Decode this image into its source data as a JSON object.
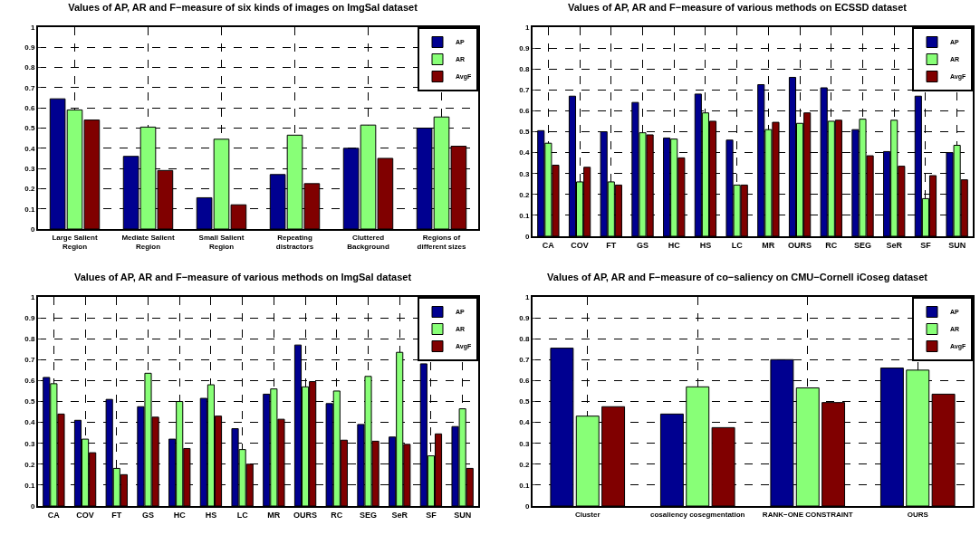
{
  "chart_data": [
    {
      "type": "bar",
      "title": "Values of AP, AR and F−measure of six kinds of images on ImgSal dataset",
      "categories": [
        "Large Salient Region",
        "Mediate Salient Region",
        "Small Salient Region",
        "Repeating distractors",
        "Cluttered Background",
        "Regions of different sizes"
      ],
      "series": [
        {
          "name": "AP",
          "color": "#000090",
          "values": [
            0.645,
            0.36,
            0.155,
            0.27,
            0.4,
            0.5
          ]
        },
        {
          "name": "AR",
          "color": "#88ff77",
          "values": [
            0.59,
            0.505,
            0.445,
            0.465,
            0.515,
            0.555
          ]
        },
        {
          "name": "AvgF",
          "color": "#800000",
          "values": [
            0.54,
            0.29,
            0.12,
            0.225,
            0.35,
            0.41
          ]
        }
      ],
      "ylim": [
        0,
        1
      ],
      "yticks": [
        0,
        0.1,
        0.2,
        0.3,
        0.4,
        0.5,
        0.6,
        0.7,
        0.8,
        0.9,
        1
      ],
      "grid": true,
      "legend": "top right"
    },
    {
      "type": "bar",
      "title": "Values of AP, AR and F−measure of various methods on ECSSD dataset",
      "categories": [
        "CA",
        "COV",
        "FT",
        "GS",
        "HC",
        "HS",
        "LC",
        "MR",
        "OURS",
        "RC",
        "SEG",
        "SeR",
        "SF",
        "SUN"
      ],
      "series": [
        {
          "name": "AP",
          "color": "#000090",
          "values": [
            0.505,
            0.67,
            0.5,
            0.64,
            0.47,
            0.68,
            0.46,
            0.725,
            0.76,
            0.71,
            0.51,
            0.405,
            0.67,
            0.4
          ]
        },
        {
          "name": "AR",
          "color": "#88ff77",
          "values": [
            0.445,
            0.26,
            0.26,
            0.495,
            0.465,
            0.59,
            0.245,
            0.51,
            0.54,
            0.55,
            0.56,
            0.555,
            0.18,
            0.435
          ]
        },
        {
          "name": "AvgF",
          "color": "#800000",
          "values": [
            0.34,
            0.33,
            0.245,
            0.485,
            0.375,
            0.55,
            0.245,
            0.545,
            0.59,
            0.555,
            0.385,
            0.335,
            0.29,
            0.27
          ]
        }
      ],
      "ylim": [
        0,
        1
      ],
      "yticks": [
        0,
        0.1,
        0.2,
        0.3,
        0.4,
        0.5,
        0.6,
        0.7,
        0.8,
        0.9,
        1
      ],
      "grid": true,
      "legend": "top right"
    },
    {
      "type": "bar",
      "title": "Values of AP, AR and F−measure of various methods on ImgSal dataset",
      "categories": [
        "CA",
        "COV",
        "FT",
        "GS",
        "HC",
        "HS",
        "LC",
        "MR",
        "OURS",
        "RC",
        "SEG",
        "SeR",
        "SF",
        "SUN"
      ],
      "series": [
        {
          "name": "AP",
          "color": "#000090",
          "values": [
            0.615,
            0.41,
            0.51,
            0.475,
            0.32,
            0.515,
            0.37,
            0.535,
            0.77,
            0.49,
            0.39,
            0.33,
            0.68,
            0.38
          ]
        },
        {
          "name": "AR",
          "color": "#88ff77",
          "values": [
            0.585,
            0.32,
            0.18,
            0.635,
            0.5,
            0.58,
            0.27,
            0.56,
            0.57,
            0.55,
            0.62,
            0.735,
            0.24,
            0.465
          ]
        },
        {
          "name": "AvgF",
          "color": "#800000",
          "values": [
            0.44,
            0.255,
            0.15,
            0.425,
            0.275,
            0.43,
            0.2,
            0.415,
            0.595,
            0.315,
            0.31,
            0.295,
            0.345,
            0.18
          ]
        }
      ],
      "ylim": [
        0,
        1
      ],
      "yticks": [
        0,
        0.1,
        0.2,
        0.3,
        0.4,
        0.5,
        0.6,
        0.7,
        0.8,
        0.9,
        1
      ],
      "grid": true,
      "legend": "top right"
    },
    {
      "type": "bar",
      "title": "Values of AP, AR and F−measure of co−saliency on CMU−Cornell iCoseg dataset",
      "categories": [
        "Cluster",
        "cosaliency cosegmentation",
        "RANK−ONE CONSTRAINT",
        "OURS"
      ],
      "series": [
        {
          "name": "AP",
          "color": "#000090",
          "values": [
            0.755,
            0.44,
            0.7,
            0.66
          ]
        },
        {
          "name": "AR",
          "color": "#88ff77",
          "values": [
            0.43,
            0.57,
            0.565,
            0.65
          ]
        },
        {
          "name": "AvgF",
          "color": "#800000",
          "values": [
            0.475,
            0.375,
            0.495,
            0.535
          ]
        }
      ],
      "ylim": [
        0,
        1
      ],
      "yticks": [
        0,
        0.1,
        0.2,
        0.3,
        0.4,
        0.5,
        0.6,
        0.7,
        0.8,
        0.9,
        1
      ],
      "grid": true,
      "legend": "top right"
    }
  ]
}
